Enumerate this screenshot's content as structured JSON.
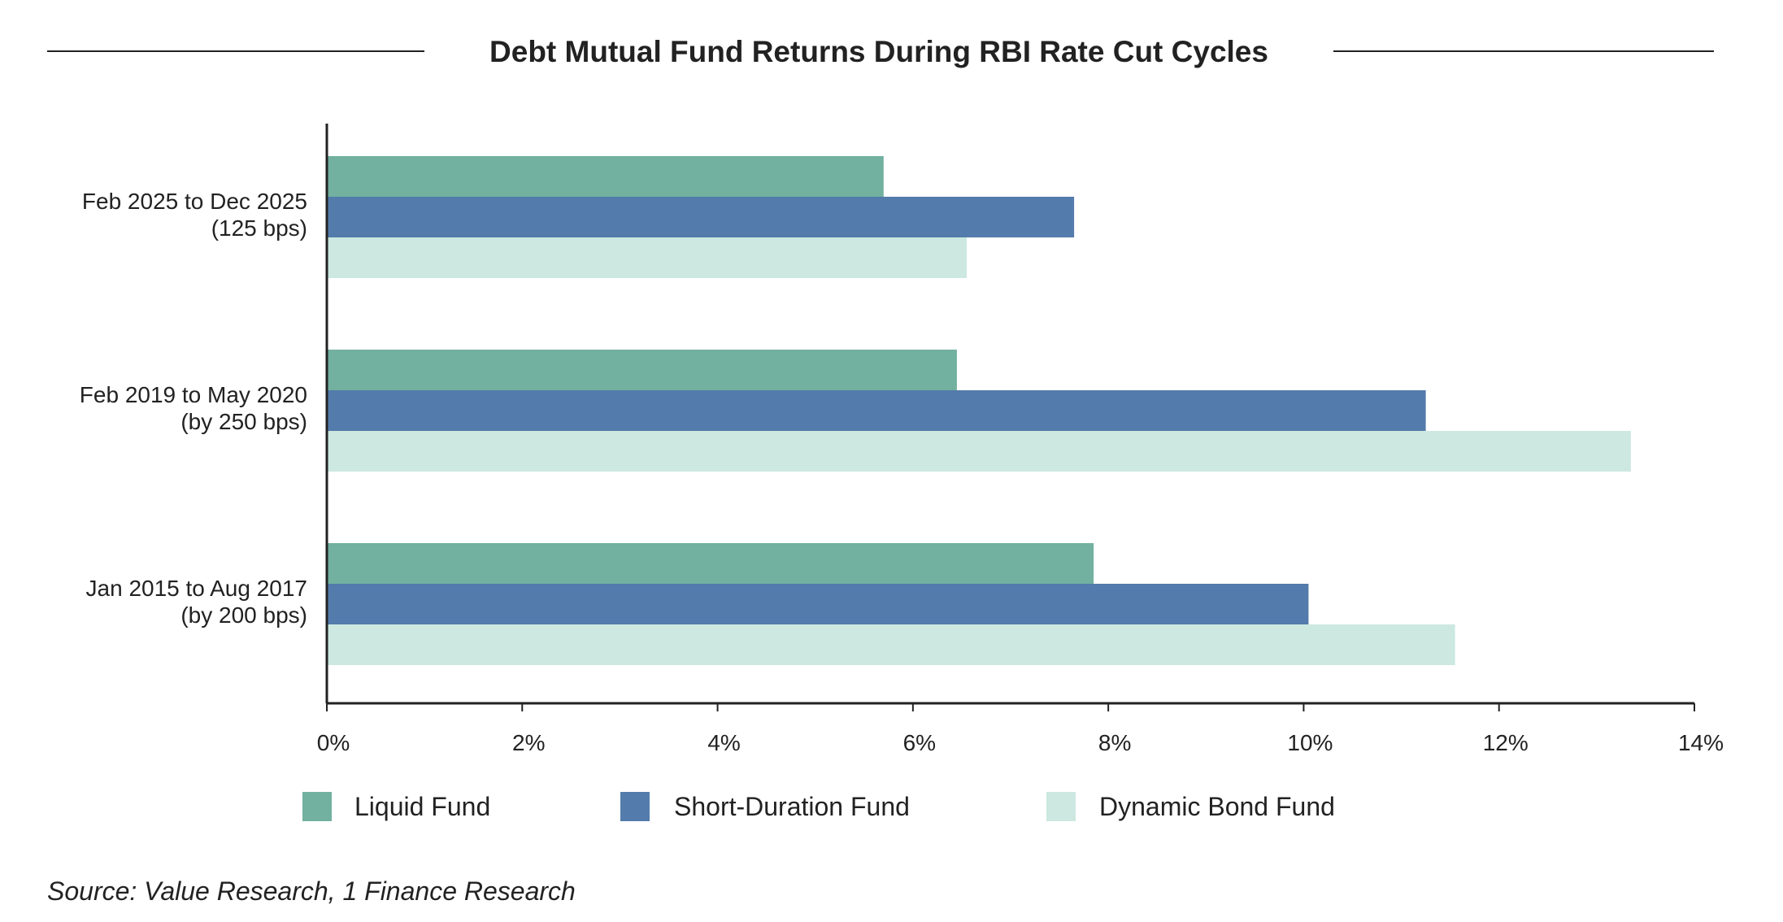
{
  "colors": {
    "liquid": "#72b09f",
    "short_duration": "#537bab",
    "dynamic": "#cce8e0",
    "axis": "#222222",
    "text": "#222222"
  },
  "chart_data": {
    "type": "bar",
    "orientation": "horizontal",
    "title": "Debt Mutual Fund Returns During RBI Rate Cut Cycles",
    "xlabel": "",
    "ylabel": "",
    "xlim": [
      0,
      14
    ],
    "x_ticks": [
      "0%",
      "2%",
      "4%",
      "6%",
      "8%",
      "10%",
      "12%",
      "14%"
    ],
    "x_tick_values": [
      0,
      2,
      4,
      6,
      8,
      10,
      12,
      14
    ],
    "grid": false,
    "legend_position": "bottom",
    "categories": [
      {
        "line1": "Feb 2025 to Dec 2025",
        "line2": "(125 bps)"
      },
      {
        "line1": "Feb 2019 to May 2020",
        "line2": "(by 250 bps)"
      },
      {
        "line1": "Jan 2015 to Aug 2017",
        "line2": "(by 200 bps)"
      }
    ],
    "series": [
      {
        "name": "Liquid Fund",
        "color_key": "liquid",
        "values": [
          5.7,
          6.45,
          7.85
        ]
      },
      {
        "name": "Short-Duration Fund",
        "color_key": "short_duration",
        "values": [
          7.65,
          11.25,
          10.05
        ]
      },
      {
        "name": "Dynamic Bond Fund",
        "color_key": "dynamic",
        "values": [
          6.55,
          13.35,
          11.55
        ]
      }
    ],
    "source": "Source: Value Research, 1 Finance Research"
  }
}
